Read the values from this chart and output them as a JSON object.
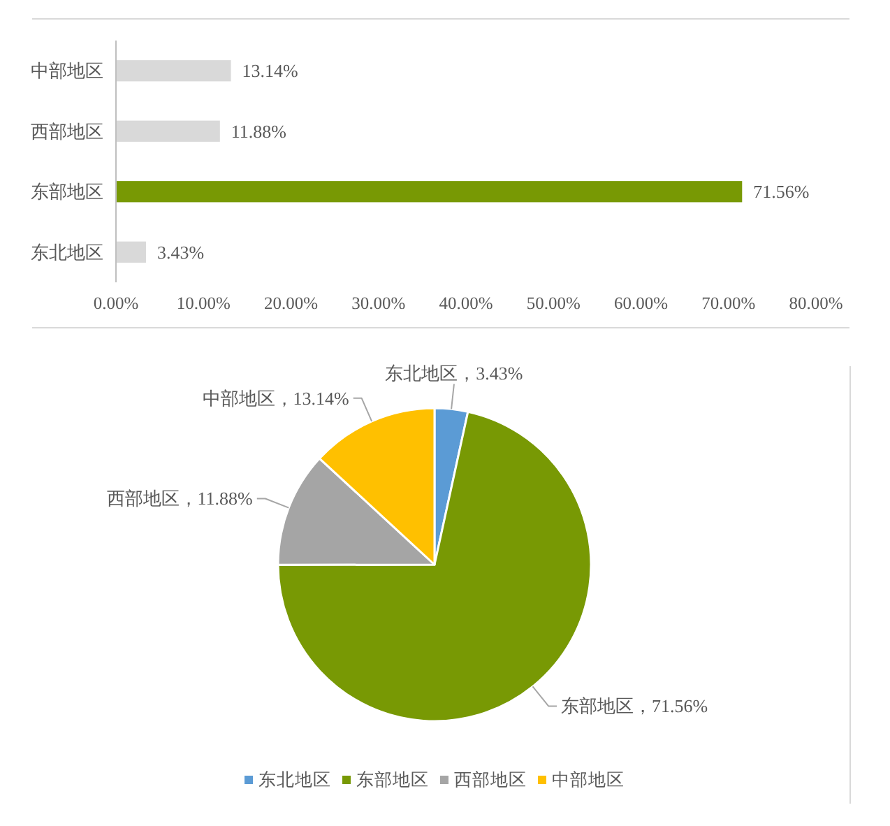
{
  "chart_data": [
    {
      "type": "bar",
      "orientation": "horizontal",
      "categories": [
        "中部地区",
        "西部地区",
        "东部地区",
        "东北地区"
      ],
      "values": [
        13.14,
        11.88,
        71.56,
        3.43
      ],
      "colors": [
        "#d9d9d9",
        "#d9d9d9",
        "#789904",
        "#d9d9d9"
      ],
      "value_labels": [
        "13.14%",
        "11.88%",
        "71.56%",
        "3.43%"
      ],
      "xlim": [
        0,
        80
      ],
      "xticks": [
        {
          "value": 0,
          "label": "0.00%"
        },
        {
          "value": 10,
          "label": "10.00%"
        },
        {
          "value": 20,
          "label": "20.00%"
        },
        {
          "value": 30,
          "label": "30.00%"
        },
        {
          "value": 40,
          "label": "40.00%"
        },
        {
          "value": 50,
          "label": "50.00%"
        },
        {
          "value": 60,
          "label": "60.00%"
        },
        {
          "value": 70,
          "label": "70.00%"
        },
        {
          "value": 80,
          "label": "80.00%"
        }
      ]
    },
    {
      "type": "pie",
      "categories": [
        "东北地区",
        "东部地区",
        "西部地区",
        "中部地区"
      ],
      "values": [
        3.43,
        71.56,
        11.88,
        13.14
      ],
      "colors": [
        "#5b9bd5",
        "#789904",
        "#a5a5a5",
        "#ffc000"
      ],
      "value_labels": [
        "东北地区，3.43%",
        "东部地区，71.56%",
        "西部地区，11.88%",
        "中部地区，13.14%"
      ],
      "legend": "bottom"
    }
  ]
}
